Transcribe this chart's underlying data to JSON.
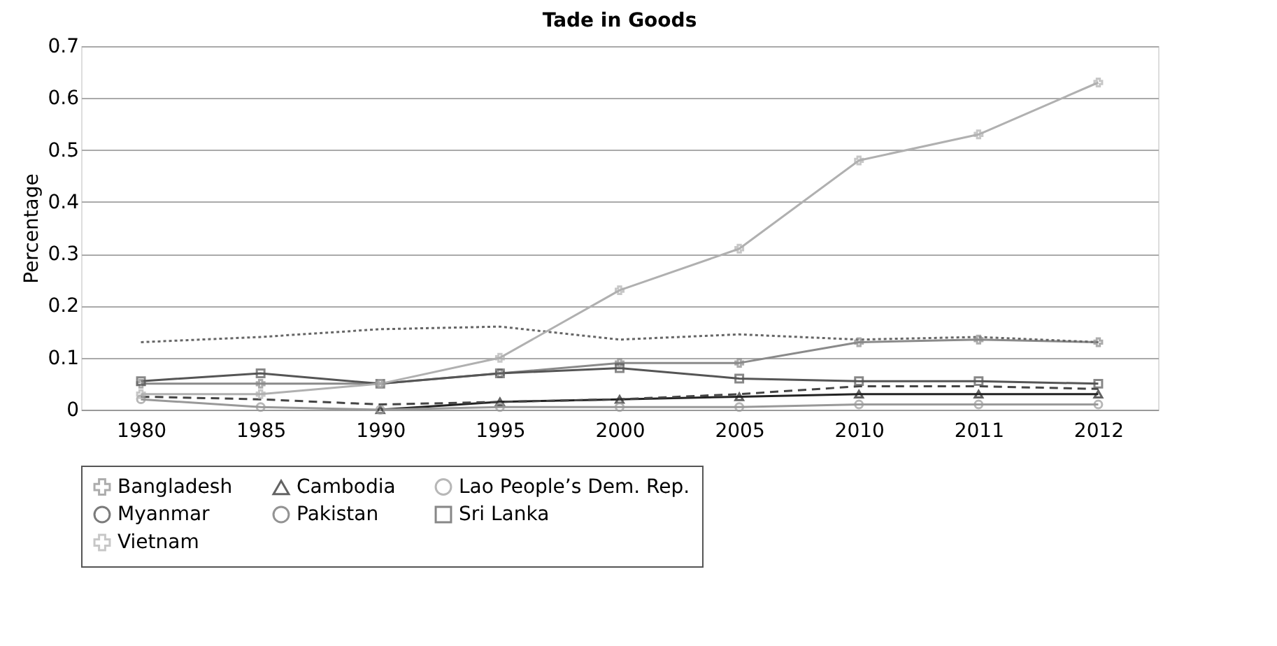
{
  "chart_data": {
    "type": "line",
    "title": "Tade in Goods",
    "ylabel": "Percentage",
    "categories": [
      "1980",
      "1985",
      "1990",
      "1995",
      "2000",
      "2005",
      "2010",
      "2011",
      "2012"
    ],
    "series": [
      {
        "name": "Bangladesh",
        "color": "#8a8a8a",
        "marker": "cross",
        "line_style": "solid",
        "values": [
          0.05,
          0.05,
          0.05,
          0.07,
          0.09,
          0.09,
          0.13,
          0.135,
          0.13
        ]
      },
      {
        "name": "Cambodia",
        "color": "#222222",
        "marker": "triangle",
        "line_style": "solid",
        "values": [
          null,
          null,
          0.0,
          0.015,
          0.02,
          0.025,
          0.03,
          0.03,
          0.03
        ]
      },
      {
        "name": "Lao People’s Dem. Rep.",
        "color": "#999999",
        "marker": "circle",
        "line_style": "solid",
        "values": [
          0.02,
          0.005,
          0.0,
          0.005,
          0.005,
          0.005,
          0.01,
          0.01,
          0.01
        ]
      },
      {
        "name": "Myanmar",
        "color": "#444444",
        "marker": "none",
        "line_style": "dashed",
        "values": [
          0.025,
          0.02,
          0.01,
          0.015,
          0.02,
          0.03,
          0.045,
          0.045,
          0.04
        ]
      },
      {
        "name": "Pakistan",
        "color": "#666666",
        "marker": "none",
        "line_style": "dotted",
        "values": [
          0.13,
          0.14,
          0.155,
          0.16,
          0.135,
          0.145,
          0.135,
          0.14,
          0.13
        ]
      },
      {
        "name": "Sri Lanka",
        "color": "#555555",
        "marker": "square",
        "line_style": "solid",
        "values": [
          0.055,
          0.07,
          0.05,
          0.07,
          0.08,
          0.06,
          0.055,
          0.055,
          0.05
        ]
      },
      {
        "name": "Vietnam",
        "color": "#b0b0b0",
        "marker": "cross",
        "line_style": "solid",
        "values": [
          0.03,
          0.03,
          0.05,
          0.1,
          0.23,
          0.31,
          0.48,
          0.53,
          0.63
        ]
      }
    ],
    "ylim": [
      0,
      0.7
    ],
    "yticks": [
      0,
      0.1,
      0.2,
      0.3,
      0.4,
      0.5,
      0.6,
      0.7
    ],
    "grid": "y",
    "legend": "bottom"
  }
}
